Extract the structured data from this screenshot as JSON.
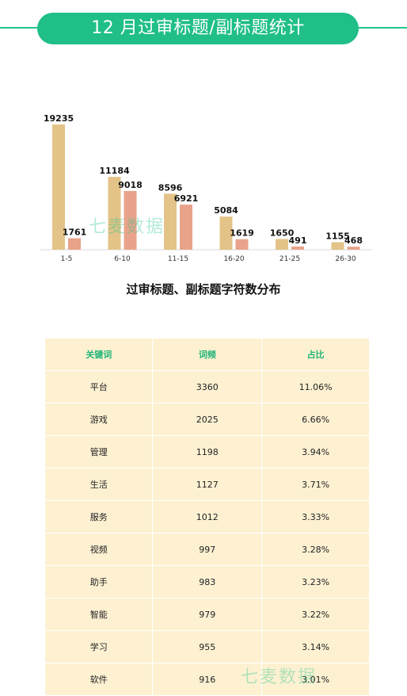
{
  "header": {
    "title": "12 月过审标题/副标题统计"
  },
  "watermark": "七麦数据",
  "chart_data": {
    "type": "bar",
    "title": "过审标题、副标题字符数分布",
    "categories": [
      "1-5",
      "6-10",
      "11-15",
      "16-20",
      "21-25",
      "26-30"
    ],
    "series": [
      {
        "color": "#e3c387",
        "values": [
          19235,
          11184,
          8596,
          5084,
          1650,
          1155
        ]
      },
      {
        "color": "#e8a38a",
        "values": [
          1761,
          9018,
          6921,
          1619,
          491,
          468
        ]
      }
    ],
    "ylim": [
      0,
      19235
    ],
    "grid": false
  },
  "table": {
    "headers": [
      "关键词",
      "词频",
      "占比"
    ],
    "rows": [
      [
        "平台",
        "3360",
        "11.06%"
      ],
      [
        "游戏",
        "2025",
        "6.66%"
      ],
      [
        "管理",
        "1198",
        "3.94%"
      ],
      [
        "生活",
        "1127",
        "3.71%"
      ],
      [
        "服务",
        "1012",
        "3.33%"
      ],
      [
        "视频",
        "997",
        "3.28%"
      ],
      [
        "助手",
        "983",
        "3.23%"
      ],
      [
        "智能",
        "979",
        "3.22%"
      ],
      [
        "学习",
        "955",
        "3.14%"
      ],
      [
        "软件",
        "916",
        "3.01%"
      ]
    ]
  }
}
